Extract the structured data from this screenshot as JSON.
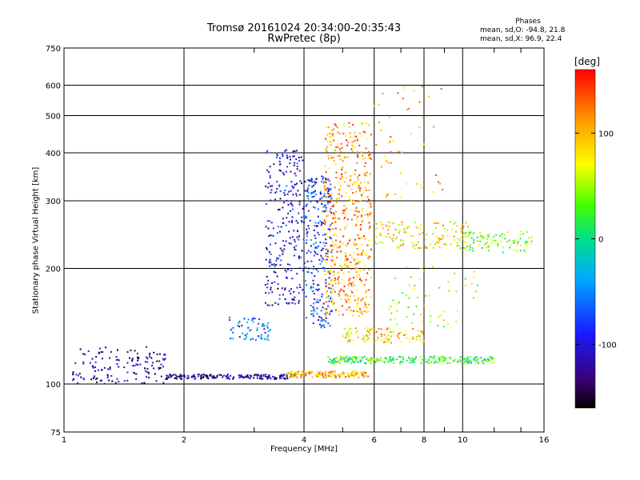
{
  "header": {
    "title_line1": "Tromsø 20161024 20:34:00-20:35:43",
    "title_line2": "RwPretec (8p)"
  },
  "phases": {
    "heading": "Phases",
    "line_o": "mean, sd,O: -94.8, 21.8",
    "line_x": "mean, sd,X:  96.9, 22.4"
  },
  "colorbar": {
    "unit": "[deg]",
    "ticks": [
      "100",
      "0",
      "-100"
    ]
  },
  "chart_data": {
    "type": "scatter",
    "xlabel": "Frequency [MHz]",
    "ylabel": "Stationary phase Virtual Height [km]",
    "xscale": "log",
    "yscale": "log",
    "xlim": [
      1,
      16
    ],
    "ylim": [
      75,
      750
    ],
    "xticks": [
      1,
      2,
      4,
      6,
      8,
      10,
      16
    ],
    "xtick_labels": [
      "1",
      "2",
      "4",
      "6",
      "8",
      "10",
      "16"
    ],
    "yticks": [
      75,
      100,
      200,
      300,
      400,
      500,
      600,
      750
    ],
    "ytick_labels": [
      "75",
      "100",
      "200",
      "300",
      "400",
      "500",
      "600",
      "750"
    ],
    "grid": true,
    "color_scale": {
      "min": -160,
      "max": 160,
      "label": "[deg]"
    },
    "point_groups": [
      {
        "name": "",
        "x_range": [
          1.05,
          1.8
        ],
        "y_range": [
          100,
          125
        ],
        "phase": -120,
        "count": 140
      },
      {
        "name": "",
        "x_range": [
          1.8,
          3.8
        ],
        "y_range": [
          103,
          106
        ],
        "phase": -120,
        "count": 170
      },
      {
        "name": "",
        "x_range": [
          3.6,
          5.8
        ],
        "y_range": [
          104,
          108
        ],
        "phase": 100,
        "count": 150
      },
      {
        "name": "",
        "x_range": [
          3.2,
          4.0
        ],
        "y_range": [
          160,
          410
        ],
        "phase": -100,
        "count": 260
      },
      {
        "name": "",
        "x_range": [
          4.0,
          4.7
        ],
        "y_range": [
          140,
          350
        ],
        "phase": -80,
        "count": 260
      },
      {
        "name": "",
        "x_range": [
          4.5,
          5.9
        ],
        "y_range": [
          150,
          480
        ],
        "phase": 110,
        "count": 520
      },
      {
        "name": "",
        "x_range": [
          2.6,
          3.3
        ],
        "y_range": [
          130,
          150
        ],
        "phase": -60,
        "count": 60
      },
      {
        "name": "",
        "x_range": [
          4.6,
          12.0
        ],
        "y_range": [
          113,
          118
        ],
        "phase": 20,
        "count": 260
      },
      {
        "name": "",
        "x_range": [
          5.0,
          8.0
        ],
        "y_range": [
          128,
          140
        ],
        "phase": 90,
        "count": 110
      },
      {
        "name": "",
        "x_range": [
          6.0,
          10.5
        ],
        "y_range": [
          225,
          265
        ],
        "phase": 80,
        "count": 140
      },
      {
        "name": "",
        "x_range": [
          10.0,
          15.0
        ],
        "y_range": [
          220,
          250
        ],
        "phase": 40,
        "count": 90
      },
      {
        "name": "",
        "x_range": [
          6.5,
          11.0
        ],
        "y_range": [
          140,
          210
        ],
        "phase": 60,
        "count": 60
      },
      {
        "name": "",
        "x_range": [
          6.0,
          9.0
        ],
        "y_range": [
          300,
          600
        ],
        "phase": 100,
        "count": 50
      }
    ]
  }
}
